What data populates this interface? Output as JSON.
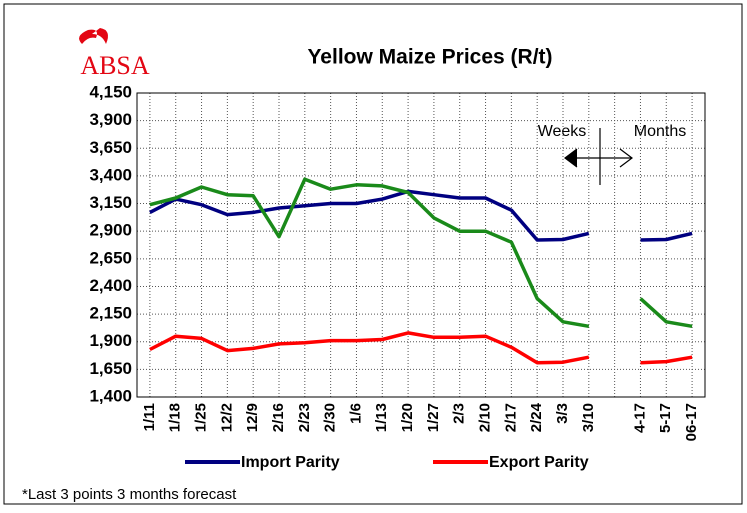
{
  "chart_data": {
    "type": "line",
    "title": "Yellow Maize Prices (R/t)",
    "logo": "ABSA",
    "categories": [
      "1/11",
      "1/18",
      "1/25",
      "12/2",
      "12/9",
      "2/16",
      "2/23",
      "2/30",
      "1/6",
      "1/13",
      "1/20",
      "1/27",
      "2/3",
      "2/10",
      "2/17",
      "2/24",
      "3/3",
      "3/10",
      null,
      "4-17",
      "5-17",
      "06-17"
    ],
    "series": [
      {
        "name": "Import Parity",
        "color": "#000080",
        "values": [
          3070,
          3190,
          3140,
          3050,
          3070,
          3110,
          3130,
          3150,
          3150,
          3190,
          3260,
          3230,
          3200,
          3200,
          3090,
          2820,
          2825,
          2880,
          null,
          2820,
          2825,
          2880
        ]
      },
      {
        "color": "#1a8a1a",
        "values": [
          3140,
          3200,
          3300,
          3230,
          3220,
          2850,
          3370,
          3280,
          3320,
          3310,
          3250,
          3020,
          2900,
          2900,
          2800,
          2290,
          2080,
          2040,
          null,
          2290,
          2080,
          2040
        ]
      },
      {
        "name": "Export Parity",
        "color": "#ff0000",
        "values": [
          1830,
          1950,
          1930,
          1820,
          1840,
          1880,
          1890,
          1910,
          1910,
          1920,
          1980,
          1940,
          1940,
          1950,
          1850,
          1710,
          1715,
          1760,
          null,
          1710,
          1720,
          1760
        ]
      }
    ],
    "ylim": [
      1400,
      4150
    ],
    "yticks": [
      {
        "value": 1400,
        "label": "1,400"
      },
      {
        "value": 1650,
        "label": "1,650"
      },
      {
        "value": 1900,
        "label": "1,900"
      },
      {
        "value": 2150,
        "label": "2,150"
      },
      {
        "value": 2400,
        "label": "2,400"
      },
      {
        "value": 2650,
        "label": "2,650"
      },
      {
        "value": 2900,
        "label": "2,900"
      },
      {
        "value": 3150,
        "label": "3,150"
      },
      {
        "value": 3400,
        "label": "3,400"
      },
      {
        "value": 3650,
        "label": "3,650"
      },
      {
        "value": 3900,
        "label": "3,900"
      },
      {
        "value": 4150,
        "label": "4,150"
      }
    ],
    "grid": true,
    "annotations": [
      "Weeks",
      "Months"
    ],
    "footnote": "*Last 3 points 3 months forecast"
  }
}
